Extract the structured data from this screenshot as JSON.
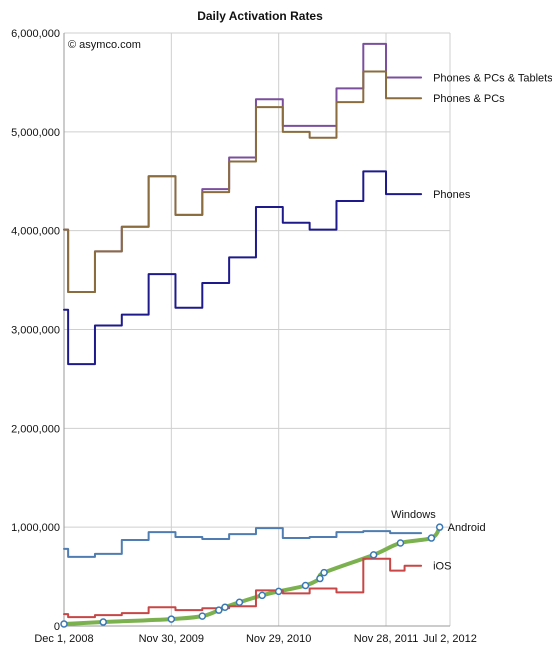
{
  "chart_data": {
    "type": "line",
    "title": "Daily Activation Rates",
    "annotation": "© asymco.com",
    "xlabel": "",
    "ylabel": "",
    "ylim": [
      0,
      6000000
    ],
    "y_ticks": [
      0,
      1000000,
      2000000,
      3000000,
      4000000,
      5000000,
      6000000
    ],
    "y_tick_labels": [
      "0",
      "1,000,000",
      "2,000,000",
      "3,000,000",
      "4,000,000",
      "5,000,000",
      "6,000,000"
    ],
    "x_tick_labels": [
      "Dec 1, 2008",
      "Nov 30, 2009",
      "Nov 29, 2010",
      "Nov 28, 2011",
      "Jul 2, 2012"
    ],
    "x_tick_positions": [
      0,
      52,
      104,
      156,
      187
    ],
    "xlim": [
      0,
      187
    ],
    "grid": true,
    "legend": "direct labels at line ends",
    "series": [
      {
        "name": "Phones & PCs & Tablets",
        "color": "#7b4f9e",
        "line": "step",
        "points": [
          [
            0,
            4010000
          ],
          [
            2,
            4010000
          ],
          [
            2,
            3380000
          ],
          [
            15,
            3380000
          ],
          [
            15,
            3790000
          ],
          [
            28,
            3790000
          ],
          [
            28,
            4040000
          ],
          [
            41,
            4040000
          ],
          [
            41,
            4550000
          ],
          [
            54,
            4550000
          ],
          [
            54,
            4160000
          ],
          [
            67,
            4160000
          ],
          [
            67,
            4420000
          ],
          [
            80,
            4420000
          ],
          [
            80,
            4740000
          ],
          [
            93,
            4740000
          ],
          [
            93,
            5330000
          ],
          [
            106,
            5330000
          ],
          [
            106,
            5060000
          ],
          [
            132,
            5060000
          ],
          [
            132,
            5440000
          ],
          [
            145,
            5440000
          ],
          [
            145,
            5890000
          ],
          [
            156,
            5890000
          ],
          [
            156,
            5550000
          ],
          [
            173,
            5550000
          ]
        ]
      },
      {
        "name": "Phones & PCs",
        "color": "#8b6c3f",
        "line": "step",
        "points": [
          [
            0,
            4010000
          ],
          [
            2,
            4010000
          ],
          [
            2,
            3380000
          ],
          [
            15,
            3380000
          ],
          [
            15,
            3790000
          ],
          [
            28,
            3790000
          ],
          [
            28,
            4040000
          ],
          [
            41,
            4040000
          ],
          [
            41,
            4550000
          ],
          [
            54,
            4550000
          ],
          [
            54,
            4160000
          ],
          [
            67,
            4160000
          ],
          [
            67,
            4390000
          ],
          [
            80,
            4390000
          ],
          [
            80,
            4700000
          ],
          [
            93,
            4700000
          ],
          [
            93,
            5250000
          ],
          [
            106,
            5250000
          ],
          [
            106,
            5000000
          ],
          [
            119,
            5000000
          ],
          [
            119,
            4940000
          ],
          [
            132,
            4940000
          ],
          [
            132,
            5300000
          ],
          [
            145,
            5300000
          ],
          [
            145,
            5610000
          ],
          [
            156,
            5610000
          ],
          [
            156,
            5340000
          ],
          [
            173,
            5340000
          ]
        ]
      },
      {
        "name": "Phones",
        "color": "#1f1a8c",
        "line": "step",
        "points": [
          [
            0,
            3200000
          ],
          [
            2,
            3200000
          ],
          [
            2,
            2650000
          ],
          [
            15,
            2650000
          ],
          [
            15,
            3040000
          ],
          [
            28,
            3040000
          ],
          [
            28,
            3150000
          ],
          [
            41,
            3150000
          ],
          [
            41,
            3560000
          ],
          [
            54,
            3560000
          ],
          [
            54,
            3220000
          ],
          [
            67,
            3220000
          ],
          [
            67,
            3470000
          ],
          [
            80,
            3470000
          ],
          [
            80,
            3730000
          ],
          [
            93,
            3730000
          ],
          [
            93,
            4240000
          ],
          [
            106,
            4240000
          ],
          [
            106,
            4080000
          ],
          [
            119,
            4080000
          ],
          [
            119,
            4010000
          ],
          [
            132,
            4010000
          ],
          [
            132,
            4300000
          ],
          [
            145,
            4300000
          ],
          [
            145,
            4600000
          ],
          [
            156,
            4600000
          ],
          [
            156,
            4370000
          ],
          [
            173,
            4370000
          ]
        ]
      },
      {
        "name": "Windows",
        "color": "#4f7db1",
        "line": "step",
        "points": [
          [
            0,
            780000
          ],
          [
            2,
            780000
          ],
          [
            2,
            700000
          ],
          [
            15,
            700000
          ],
          [
            15,
            730000
          ],
          [
            28,
            730000
          ],
          [
            28,
            870000
          ],
          [
            41,
            870000
          ],
          [
            41,
            950000
          ],
          [
            54,
            950000
          ],
          [
            54,
            900000
          ],
          [
            67,
            900000
          ],
          [
            67,
            880000
          ],
          [
            80,
            880000
          ],
          [
            80,
            930000
          ],
          [
            93,
            930000
          ],
          [
            93,
            990000
          ],
          [
            106,
            990000
          ],
          [
            106,
            890000
          ],
          [
            119,
            890000
          ],
          [
            119,
            900000
          ],
          [
            132,
            900000
          ],
          [
            132,
            950000
          ],
          [
            145,
            950000
          ],
          [
            145,
            960000
          ],
          [
            158,
            960000
          ],
          [
            158,
            940000
          ],
          [
            173,
            940000
          ]
        ]
      },
      {
        "name": "Android",
        "color": "#7cb14f",
        "line": "smooth",
        "points": [
          [
            0,
            20000
          ],
          [
            19,
            40000
          ],
          [
            52,
            70000
          ],
          [
            67,
            100000
          ],
          [
            75,
            160000
          ],
          [
            78,
            190000
          ],
          [
            85,
            240000
          ],
          [
            96,
            310000
          ],
          [
            104,
            350000
          ],
          [
            117,
            410000
          ],
          [
            124,
            480000
          ],
          [
            126,
            540000
          ],
          [
            150,
            720000
          ],
          [
            163,
            840000
          ],
          [
            178,
            890000
          ],
          [
            182,
            1000000
          ]
        ]
      },
      {
        "name": "iOS",
        "color": "#c84646",
        "line": "step",
        "points": [
          [
            0,
            120000
          ],
          [
            2,
            120000
          ],
          [
            2,
            90000
          ],
          [
            15,
            90000
          ],
          [
            15,
            110000
          ],
          [
            28,
            110000
          ],
          [
            28,
            130000
          ],
          [
            41,
            130000
          ],
          [
            41,
            190000
          ],
          [
            54,
            190000
          ],
          [
            54,
            160000
          ],
          [
            67,
            160000
          ],
          [
            67,
            180000
          ],
          [
            80,
            180000
          ],
          [
            80,
            200000
          ],
          [
            93,
            200000
          ],
          [
            93,
            360000
          ],
          [
            106,
            360000
          ],
          [
            106,
            330000
          ],
          [
            119,
            330000
          ],
          [
            119,
            380000
          ],
          [
            132,
            380000
          ],
          [
            132,
            340000
          ],
          [
            145,
            340000
          ],
          [
            145,
            680000
          ],
          [
            158,
            680000
          ],
          [
            158,
            560000
          ],
          [
            165,
            560000
          ],
          [
            165,
            610000
          ],
          [
            173,
            610000
          ]
        ]
      }
    ],
    "series_label_text": [
      "Phones & PCs & Tablets",
      "Phones & PCs",
      "Phones",
      "Windows",
      "Android",
      "iOS"
    ]
  }
}
